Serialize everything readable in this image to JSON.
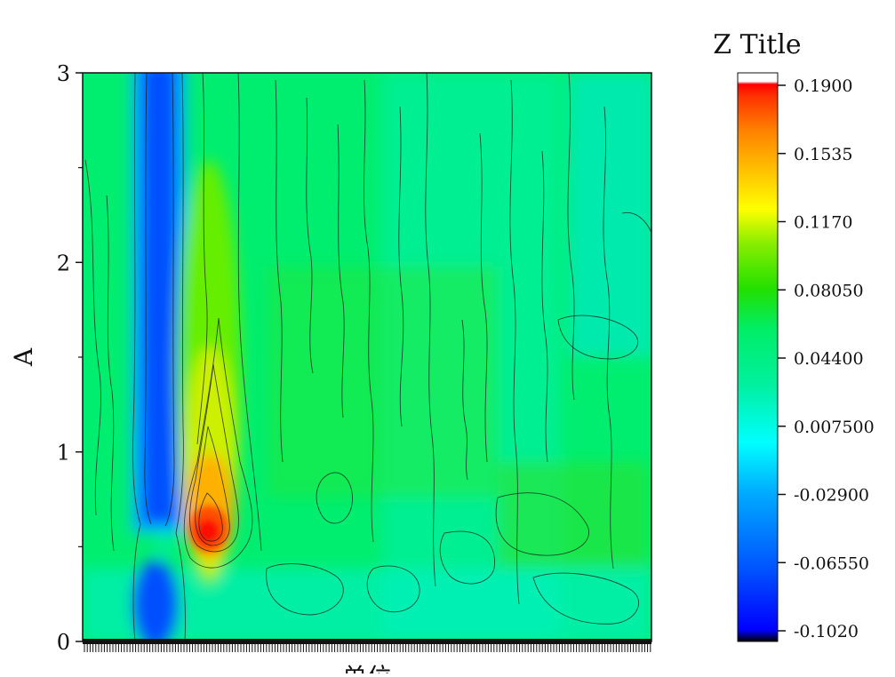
{
  "chart_data": {
    "type": "heatmap",
    "title": "",
    "xlabel": "单位",
    "ylabel": "A",
    "ylim": [
      0,
      3
    ],
    "y_ticks": [
      "0",
      "1",
      "2",
      "3"
    ],
    "grid": false,
    "contour_lines": true,
    "colorbar": {
      "title": "Z Title",
      "placement": "right",
      "range": [
        -0.102,
        0.19
      ],
      "tick_labels": [
        "0.1900",
        "0.1535",
        "0.1170",
        "0.08050",
        "0.04400",
        "0.007500",
        "-0.02900",
        "-0.06550",
        "-0.1020"
      ],
      "colors": [
        "#000000",
        "#0000ff",
        "#0055ff",
        "#00aaff",
        "#00ffff",
        "#00f0a0",
        "#00ee66",
        "#22e000",
        "#88ee00",
        "#ffff00",
        "#ffc000",
        "#ff8000",
        "#ff3000",
        "#ff0000",
        "#ffffff"
      ]
    },
    "features": [
      {
        "name": "blue-band",
        "x_range": [
          0.09,
          0.17
        ],
        "y_range": [
          0,
          3
        ],
        "z": -0.1
      },
      {
        "name": "hot-spot",
        "x": 0.22,
        "y": 0.55,
        "z": 0.19
      },
      {
        "name": "warm-plume",
        "x": 0.22,
        "y_range": [
          0.4,
          1.7
        ],
        "z": 0.1
      }
    ]
  }
}
